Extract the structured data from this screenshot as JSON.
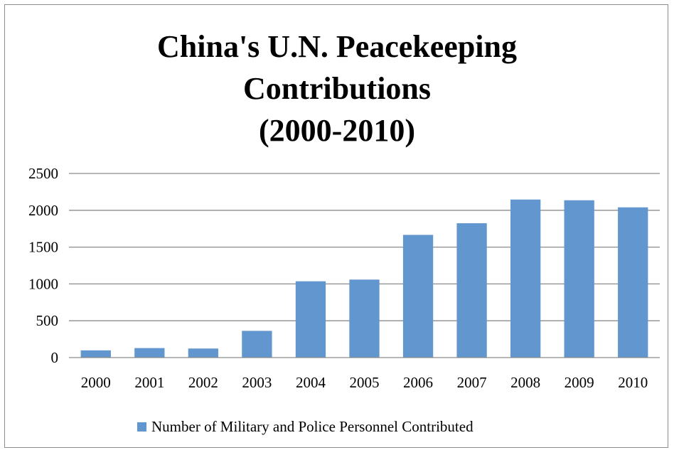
{
  "chart_data": {
    "type": "bar",
    "title_lines": [
      "China's U.N. Peacekeeping",
      "Contributions",
      "(2000-2010)"
    ],
    "categories": [
      "2000",
      "2001",
      "2002",
      "2003",
      "2004",
      "2005",
      "2006",
      "2007",
      "2008",
      "2009",
      "2010"
    ],
    "series": [
      {
        "name": "Number of Military and Police Personnel Contributed",
        "color": "#6197CE",
        "values": [
          98,
          129,
          123,
          363,
          1036,
          1059,
          1666,
          1824,
          2146,
          2136,
          2040
        ]
      }
    ],
    "ylim": [
      0,
      2500
    ],
    "yticks": [
      0,
      500,
      1000,
      1500,
      2000,
      2500
    ],
    "grid": true,
    "legend_position": "bottom"
  }
}
